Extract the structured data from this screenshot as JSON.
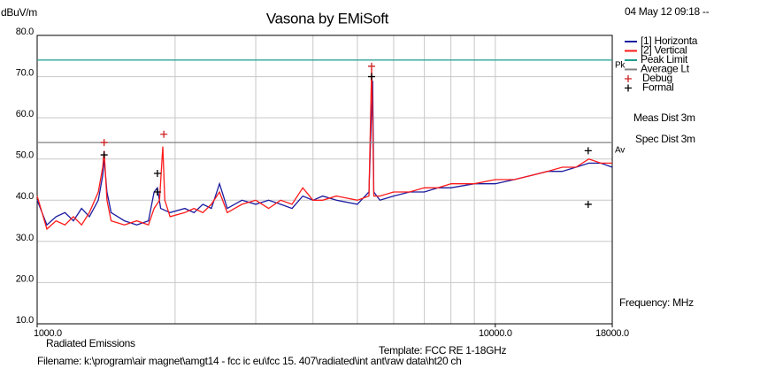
{
  "chart_data": {
    "type": "line",
    "title": "Vasona by EMiSoft",
    "date": "04 May 12 09:18 --",
    "y_label": "dBuV/m",
    "x_label": "Frequency: MHz",
    "notes": [
      "Meas Dist 3m",
      "Spec Dist 3m"
    ],
    "footer": [
      "Radiated Emissions",
      "Template: FCC RE 1-18GHz",
      "Filename: k:\\program\\air magnet\\amgt14 - fcc ic eu\\fcc 15. 407\\radiated\\int ant\\raw data\\ht20 ch"
    ],
    "limit_tags": [
      "Pk",
      "Av"
    ],
    "xlog": true,
    "xlim": [
      1000,
      18000
    ],
    "ylim": [
      10,
      80
    ],
    "xticks": [
      {
        "value": 1000,
        "label": "1000.0"
      },
      {
        "value": 10000,
        "label": "10000.0"
      },
      {
        "value": 18000,
        "label": "18000.0"
      }
    ],
    "xgrid": [
      2000,
      3000,
      4000,
      5000,
      6000,
      7000,
      8000,
      9000,
      10000
    ],
    "yticks": [
      {
        "value": 10,
        "label": "10.0"
      },
      {
        "value": 20,
        "label": "20.0"
      },
      {
        "value": 30,
        "label": "30.0"
      },
      {
        "value": 40,
        "label": "40.0"
      },
      {
        "value": 50,
        "label": "50.0"
      },
      {
        "value": 60,
        "label": "60.0"
      },
      {
        "value": 70,
        "label": "70.0"
      },
      {
        "value": 80,
        "label": "80.0"
      }
    ],
    "grid": true,
    "series": [
      {
        "name": "[1] Horizonta",
        "color": "#1a1aa0",
        "x": [
          1000,
          1050,
          1100,
          1150,
          1200,
          1250,
          1300,
          1360,
          1390,
          1400,
          1420,
          1450,
          1550,
          1650,
          1750,
          1800,
          1830,
          1860,
          1950,
          2100,
          2200,
          2300,
          2400,
          2500,
          2600,
          2800,
          3000,
          3200,
          3400,
          3600,
          3800,
          4000,
          4200,
          4500,
          5000,
          5300,
          5370,
          5400,
          5430,
          5600,
          6000,
          6500,
          7000,
          7500,
          8000,
          9000,
          10000,
          11000,
          12000,
          13000,
          14000,
          15000,
          16000,
          17000,
          18000
        ],
        "values": [
          40,
          34,
          36,
          37,
          35,
          38,
          36,
          40,
          46,
          50,
          42,
          37,
          35,
          34,
          35,
          42,
          43,
          38,
          37,
          38,
          37,
          39,
          38,
          44,
          38,
          40,
          39,
          40,
          39,
          38,
          41,
          40,
          41,
          40,
          39,
          42,
          62,
          69,
          42,
          40,
          41,
          42,
          42,
          43,
          43,
          44,
          44,
          45,
          46,
          47,
          47,
          48,
          49,
          49,
          48
        ]
      },
      {
        "name": "[2] Vertical",
        "color": "#ff1a1a",
        "x": [
          1000,
          1050,
          1100,
          1150,
          1200,
          1250,
          1300,
          1360,
          1390,
          1400,
          1420,
          1450,
          1550,
          1650,
          1750,
          1800,
          1850,
          1880,
          1900,
          1950,
          2100,
          2200,
          2300,
          2400,
          2500,
          2600,
          2800,
          3000,
          3200,
          3400,
          3600,
          3800,
          4000,
          4200,
          4500,
          5000,
          5300,
          5370,
          5400,
          5430,
          5600,
          6000,
          6500,
          7000,
          7500,
          8000,
          9000,
          10000,
          11000,
          12000,
          13000,
          14000,
          15000,
          16000,
          17000,
          18000
        ],
        "values": [
          41,
          33,
          35,
          34,
          36,
          34,
          37,
          42,
          48,
          52,
          40,
          35,
          34,
          35,
          34,
          38,
          40,
          53,
          40,
          36,
          37,
          38,
          37,
          39,
          42,
          37,
          39,
          40,
          38,
          40,
          39,
          43,
          40,
          40,
          41,
          40,
          41,
          72,
          60,
          41,
          41,
          42,
          42,
          43,
          43,
          44,
          44,
          45,
          45,
          46,
          47,
          48,
          48,
          50,
          49,
          49
        ]
      },
      {
        "name": "Peak Limit",
        "color": "#1f9e8e",
        "x": [
          1000,
          18000
        ],
        "values": [
          74,
          74
        ]
      },
      {
        "name": "Average Lt",
        "color": "#808080",
        "x": [
          1000,
          18000
        ],
        "values": [
          54,
          54
        ]
      }
    ],
    "markers": [
      {
        "name": "Debug",
        "color": "#cc2020",
        "x": [
          1400,
          1890,
          5370
        ],
        "values": [
          54,
          56,
          72.5
        ]
      },
      {
        "name": "Formal",
        "color": "#000000",
        "x": [
          1400,
          1830,
          1830,
          5370,
          15950,
          15950
        ],
        "values": [
          51,
          46.5,
          42,
          70,
          52,
          39
        ]
      }
    ]
  }
}
